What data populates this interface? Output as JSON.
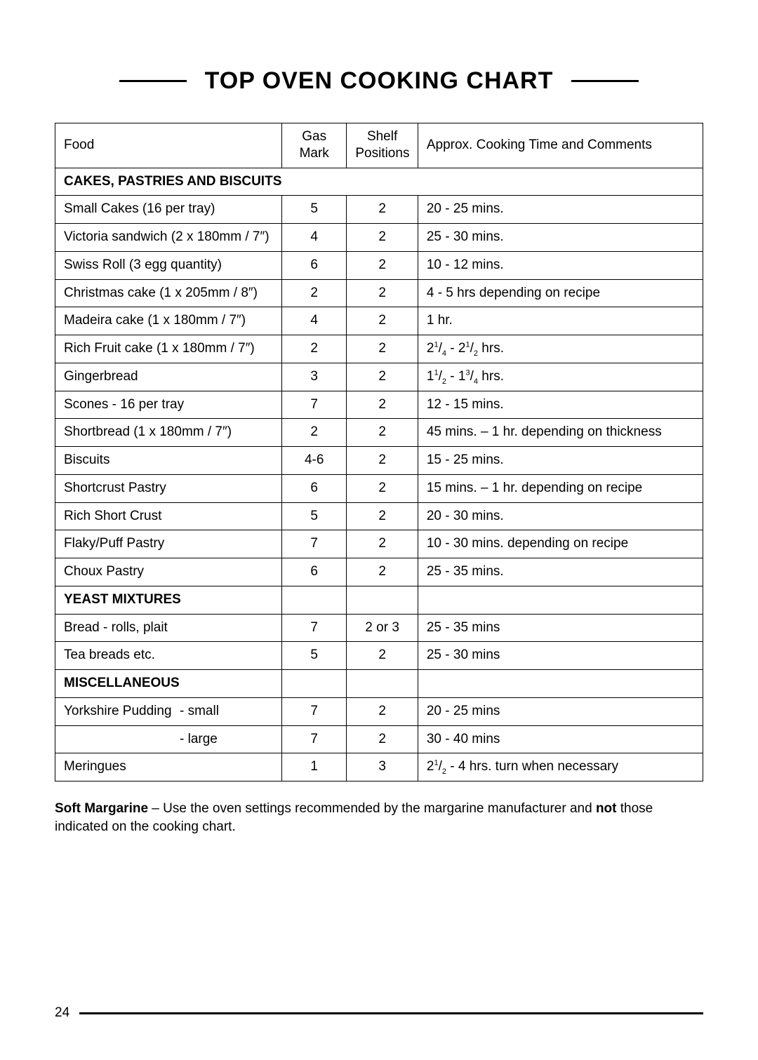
{
  "title": "TOP OVEN COOKING CHART",
  "columns": {
    "food": "Food",
    "gas_l1": "Gas",
    "gas_l2": "Mark",
    "shelf_l1": "Shelf",
    "shelf_l2": "Positions",
    "comments": "Approx. Cooking Time and Comments"
  },
  "sections": [
    {
      "heading": "CAKES, PASTRIES AND BISCUITS",
      "full_row": true,
      "rows": [
        {
          "food": "Small Cakes (16 per tray)",
          "gas": "5",
          "shelf": "2",
          "comments": "20 - 25 mins."
        },
        {
          "food": "Victoria sandwich (2 x 180mm / 7″)",
          "gas": "4",
          "shelf": "2",
          "comments": "25 - 30 mins."
        },
        {
          "food": "Swiss Roll (3 egg quantity)",
          "gas": "6",
          "shelf": "2",
          "comments": "10 - 12 mins."
        },
        {
          "food": "Christmas cake (1 x 205mm / 8″)",
          "gas": "2",
          "shelf": "2",
          "comments": "4 - 5 hrs depending on recipe"
        },
        {
          "food": "Madeira cake (1 x 180mm / 7″)",
          "gas": "4",
          "shelf": "2",
          "comments": "1 hr."
        },
        {
          "food": "Rich Fruit cake  (1 x 180mm / 7″)",
          "gas": "2",
          "shelf": "2",
          "comments_frac": [
            "2",
            "1",
            "4",
            " - ",
            "2",
            "1",
            "2",
            " hrs."
          ]
        },
        {
          "food": "Gingerbread",
          "gas": "3",
          "shelf": "2",
          "comments_frac": [
            "1",
            "1",
            "2",
            " - ",
            "1",
            "3",
            "4",
            " hrs."
          ]
        },
        {
          "food": "Scones - 16 per tray",
          "gas": "7",
          "shelf": "2",
          "comments": "12 - 15 mins."
        },
        {
          "food": "Shortbread (1 x 180mm / 7″)",
          "gas": "2",
          "shelf": "2",
          "comments": "45 mins. – 1 hr. depending on thickness"
        },
        {
          "food": "Biscuits",
          "gas": "4-6",
          "shelf": "2",
          "comments": "15 - 25 mins."
        },
        {
          "food": "Shortcrust Pastry",
          "gas": "6",
          "shelf": "2",
          "comments": "15 mins. – 1 hr. depending on recipe"
        },
        {
          "food": "Rich Short Crust",
          "gas": "5",
          "shelf": "2",
          "comments": "20 - 30 mins."
        },
        {
          "food": "Flaky/Puff Pastry",
          "gas": "7",
          "shelf": "2",
          "comments": "10 - 30 mins. depending on recipe"
        },
        {
          "food": "Choux Pastry",
          "gas": "6",
          "shelf": "2",
          "comments": "25 - 35 mins."
        }
      ]
    },
    {
      "heading": "YEAST MIXTURES",
      "full_row": false,
      "rows": [
        {
          "food": "Bread - rolls, plait",
          "gas": "7",
          "shelf": "2 or 3",
          "comments": "25 - 35 mins"
        },
        {
          "food": "Tea breads etc.",
          "gas": "5",
          "shelf": "2",
          "comments": "25 - 30 mins"
        }
      ]
    },
    {
      "heading": "MISCELLANEOUS",
      "full_row": false,
      "rows": [
        {
          "food_main": "Yorkshire Pudding",
          "food_sub": "- small",
          "gas": "7",
          "shelf": "2",
          "comments": "20 - 25 mins"
        },
        {
          "food_main": "",
          "food_sub": "- large",
          "gas": "7",
          "shelf": "2",
          "comments": "30 - 40 mins"
        },
        {
          "food": "Meringues",
          "gas": "1",
          "shelf": "3",
          "comments_frac": [
            "2",
            "1",
            "2",
            " - 4 hrs. turn when necessary"
          ]
        }
      ]
    }
  ],
  "footnote": {
    "bold1": "Soft Margarine",
    "text1": " – Use the oven settings recommended by the margarine manufacturer and ",
    "bold2": "not",
    "text2": " those indicated on the cooking chart."
  },
  "page_number": "24"
}
